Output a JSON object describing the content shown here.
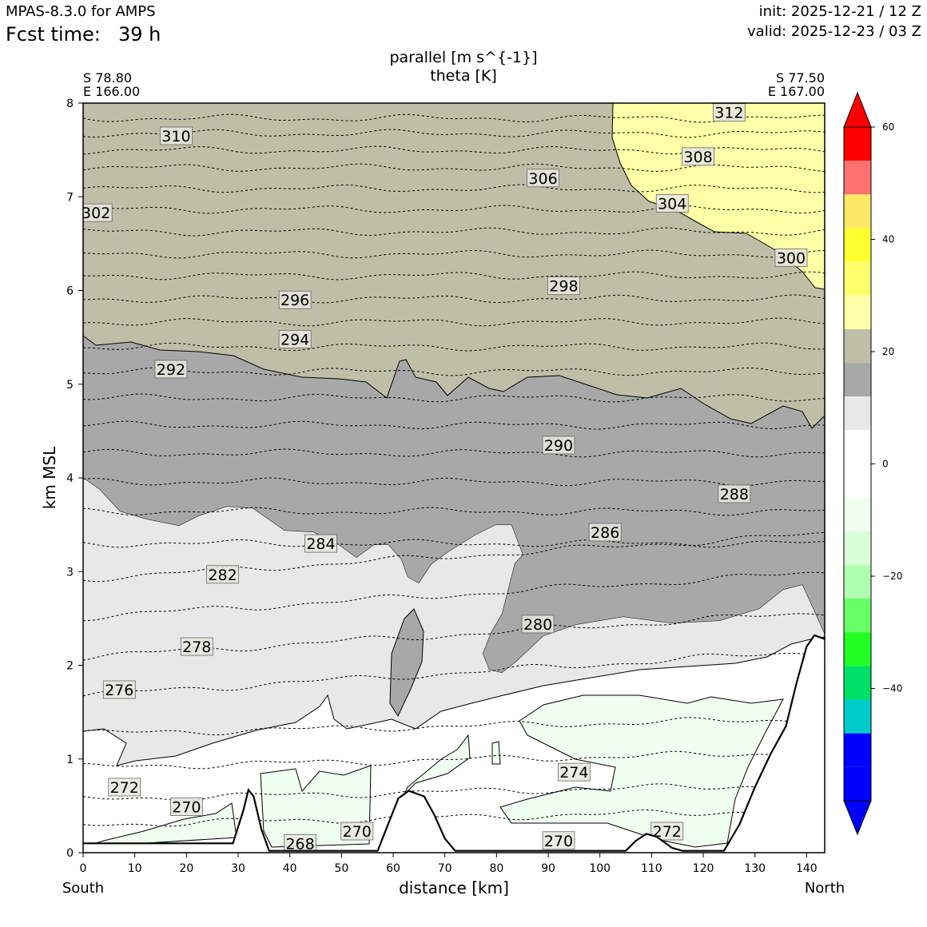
{
  "header": {
    "model": "MPAS-8.3.0 for AMPS",
    "fcst_label": "Fcst time:",
    "fcst_value": "39 h",
    "init": "init: 2025-12-21 / 12 Z",
    "valid": "valid: 2025-12-23 / 03 Z"
  },
  "chart_data": {
    "type": "area",
    "title": [
      "parallel [m s^{-1}]",
      "theta [K]"
    ],
    "xlabel": "distance [km]",
    "ylabel": "km MSL",
    "xlim": [
      0,
      143.5
    ],
    "ylim": [
      0,
      8
    ],
    "x_ticks": [
      0,
      10,
      20,
      30,
      40,
      50,
      60,
      70,
      80,
      90,
      100,
      110,
      120,
      130,
      140
    ],
    "y_ticks": [
      0,
      1,
      2,
      3,
      4,
      5,
      6,
      7,
      8
    ],
    "x_end_labels": {
      "left": "South",
      "right": "North"
    },
    "endpoints": {
      "left": [
        "S 78.80",
        "E 166.00"
      ],
      "right": [
        "S 77.50",
        "E 167.00"
      ]
    },
    "colorbar": {
      "ticks": [
        60,
        40,
        20,
        0,
        -20,
        -40
      ],
      "tick_labels": [
        "60",
        "40",
        "20",
        "0",
        "−20",
        "−40"
      ],
      "colors_top_to_bottom": [
        "#ff0000",
        "#ff7070",
        "#ffe866",
        "#ffff30",
        "#ffff6c",
        "#ffffa8",
        "#bfbfa8",
        "#a8a8a8",
        "#e8e8e8",
        "#ffffff",
        "#ffffff",
        "#f0fff0",
        "#d8ffd8",
        "#b0ffb0",
        "#66ff66",
        "#22ff22",
        "#00e066",
        "#00cccc",
        "#0000ff",
        "#0000ff"
      ],
      "top_extend": "#ff0000",
      "bottom_extend": "#0000ff"
    },
    "wind_regions": [
      {
        "name": "20-25",
        "color": "#bfbfa8"
      },
      {
        "name": "25-30",
        "color": "#ffffa8"
      },
      {
        "name": "15-20",
        "color": "#a8a8a8"
      },
      {
        "name": "10-15",
        "color": "#e8e8e8"
      },
      {
        "name": "0-10",
        "color": "#ffffff"
      },
      {
        "name": "0-(-5)",
        "color": "#f0fff0"
      }
    ],
    "theta_labels": [
      {
        "text": "312",
        "x": 125,
        "y": 7.9
      },
      {
        "text": "310",
        "x": 18,
        "y": 7.65
      },
      {
        "text": "308",
        "x": 119,
        "y": 7.43
      },
      {
        "text": "306",
        "x": 89,
        "y": 7.2
      },
      {
        "text": "304",
        "x": 114,
        "y": 6.93
      },
      {
        "text": "302",
        "x": 2.5,
        "y": 6.83
      },
      {
        "text": "300",
        "x": 137,
        "y": 6.35
      },
      {
        "text": "298",
        "x": 93,
        "y": 6.05
      },
      {
        "text": "296",
        "x": 41,
        "y": 5.9
      },
      {
        "text": "294",
        "x": 41,
        "y": 5.48
      },
      {
        "text": "292",
        "x": 17,
        "y": 5.16
      },
      {
        "text": "290",
        "x": 92,
        "y": 4.35
      },
      {
        "text": "288",
        "x": 126,
        "y": 3.83
      },
      {
        "text": "286",
        "x": 101,
        "y": 3.42
      },
      {
        "text": "284",
        "x": 46,
        "y": 3.3
      },
      {
        "text": "282",
        "x": 27,
        "y": 2.97
      },
      {
        "text": "280",
        "x": 88,
        "y": 2.44
      },
      {
        "text": "278",
        "x": 22,
        "y": 2.2
      },
      {
        "text": "276",
        "x": 7,
        "y": 1.74
      },
      {
        "text": "274",
        "x": 95,
        "y": 0.86
      },
      {
        "text": "272",
        "x": 8,
        "y": 0.7
      },
      {
        "text": "270",
        "x": 20,
        "y": 0.49
      },
      {
        "text": "270",
        "x": 53,
        "y": 0.23
      },
      {
        "text": "268",
        "x": 42,
        "y": 0.1
      },
      {
        "text": "270",
        "x": 92,
        "y": 0.13
      },
      {
        "text": "272",
        "x": 113,
        "y": 0.23
      }
    ],
    "terrain_km": [
      [
        0,
        0.1
      ],
      [
        29,
        0.1
      ],
      [
        31,
        0.45
      ],
      [
        32,
        0.67
      ],
      [
        33,
        0.6
      ],
      [
        34.5,
        0.25
      ],
      [
        36,
        0.02
      ],
      [
        57,
        0.02
      ],
      [
        59,
        0.3
      ],
      [
        61,
        0.58
      ],
      [
        63,
        0.66
      ],
      [
        66,
        0.6
      ],
      [
        68,
        0.4
      ],
      [
        70,
        0.15
      ],
      [
        72,
        0.02
      ],
      [
        105,
        0.02
      ],
      [
        107,
        0.13
      ],
      [
        109,
        0.2
      ],
      [
        111,
        0.17
      ],
      [
        114,
        0.05
      ],
      [
        116,
        0.02
      ],
      [
        124,
        0.02
      ],
      [
        127,
        0.3
      ],
      [
        130,
        0.7
      ],
      [
        133,
        1.05
      ],
      [
        136,
        1.35
      ],
      [
        138,
        1.8
      ],
      [
        140,
        2.2
      ],
      [
        141.5,
        2.32
      ],
      [
        143.5,
        2.28
      ]
    ]
  }
}
